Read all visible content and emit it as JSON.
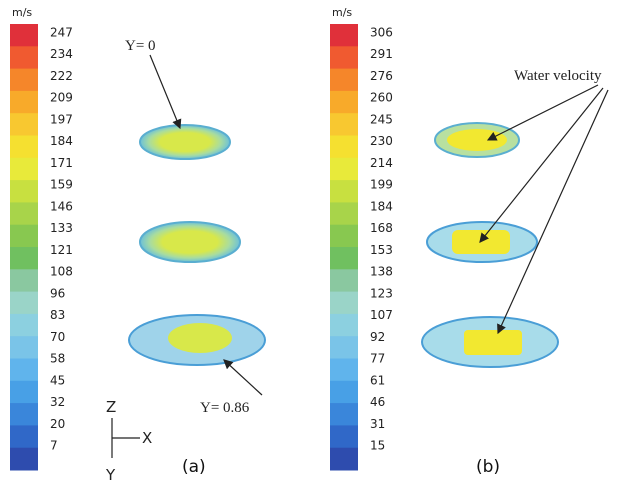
{
  "panels": [
    {
      "unit": "m/s",
      "ticks": [
        247,
        234,
        222,
        209,
        197,
        184,
        171,
        159,
        146,
        133,
        121,
        108,
        96,
        83,
        70,
        58,
        45,
        32,
        20,
        7
      ],
      "annotations": [
        "Y= 0",
        "Y= 0.86"
      ],
      "caption": "(a)"
    },
    {
      "unit": "m/s",
      "ticks": [
        306,
        291,
        276,
        260,
        245,
        230,
        214,
        199,
        184,
        168,
        153,
        138,
        123,
        107,
        92,
        77,
        61,
        46,
        31,
        15
      ],
      "annotations": [
        "Water velocity"
      ],
      "caption": "(b)"
    }
  ],
  "axis_triad": {
    "z": "Z",
    "x": "X",
    "y": "Y"
  }
}
